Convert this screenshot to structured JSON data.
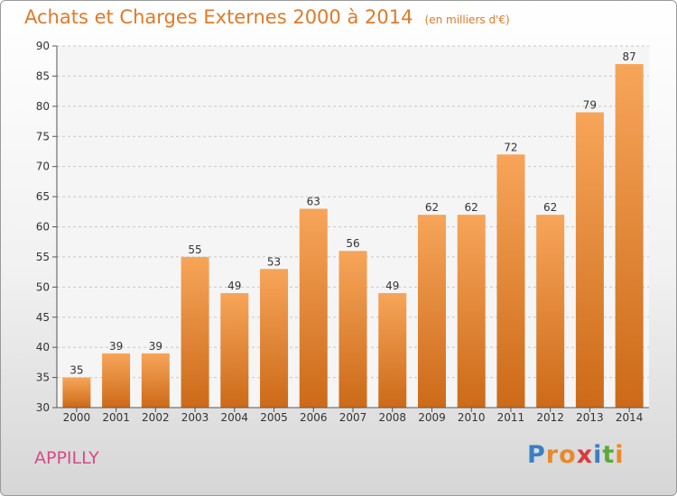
{
  "title": "Achats et Charges Externes 2000 à 2014",
  "subtitle": "(en milliers d'€)",
  "commune": "APPILLY",
  "logo": {
    "letters": [
      "P",
      "r",
      "o",
      "x",
      "i",
      "t",
      "i"
    ],
    "colors": [
      "#3a7fc4",
      "#e8892b",
      "#e8892b",
      "#d93b3b",
      "#3a7fc4",
      "#5aaa3a",
      "#e8892b"
    ]
  },
  "colors": {
    "bar_top": "#f7a55a",
    "bar_bottom": "#cc6a18",
    "title": "#e07a28",
    "commune": "#d94a86"
  },
  "chart_data": {
    "type": "bar",
    "title": "Achats et Charges Externes 2000 à 2014",
    "xlabel": "",
    "ylabel": "",
    "ylim": [
      30,
      90
    ],
    "yticks": [
      30,
      35,
      40,
      45,
      50,
      55,
      60,
      65,
      70,
      75,
      80,
      85,
      90
    ],
    "grid": true,
    "categories": [
      "2000",
      "2001",
      "2002",
      "2003",
      "2004",
      "2005",
      "2006",
      "2007",
      "2008",
      "2009",
      "2010",
      "2011",
      "2012",
      "2013",
      "2014"
    ],
    "values": [
      35,
      39,
      39,
      55,
      49,
      53,
      63,
      56,
      49,
      62,
      62,
      72,
      62,
      79,
      87
    ]
  }
}
